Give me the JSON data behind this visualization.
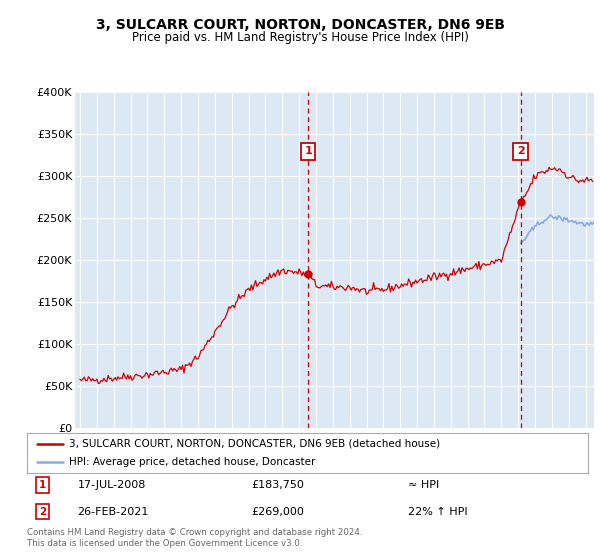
{
  "title": "3, SULCARR COURT, NORTON, DONCASTER, DN6 9EB",
  "subtitle": "Price paid vs. HM Land Registry's House Price Index (HPI)",
  "plot_bg_color": "#dce9f5",
  "ylim": [
    0,
    400000
  ],
  "xlim_start": 1994.7,
  "xlim_end": 2025.5,
  "marker1_date": 2008.54,
  "marker1_price": 183750,
  "marker1_text": "17-JUL-2008",
  "marker1_price_str": "£183,750",
  "marker1_hpi": "≈ HPI",
  "marker2_date": 2021.15,
  "marker2_price": 269000,
  "marker2_text": "26-FEB-2021",
  "marker2_price_str": "£269,000",
  "marker2_hpi": "22% ↑ HPI",
  "legend_line1": "3, SULCARR COURT, NORTON, DONCASTER, DN6 9EB (detached house)",
  "legend_line2": "HPI: Average price, detached house, Doncaster",
  "footer": "Contains HM Land Registry data © Crown copyright and database right 2024.\nThis data is licensed under the Open Government Licence v3.0.",
  "house_color": "#cc0000",
  "hpi_color": "#88aadd",
  "marker_box_color": "#cc0000"
}
